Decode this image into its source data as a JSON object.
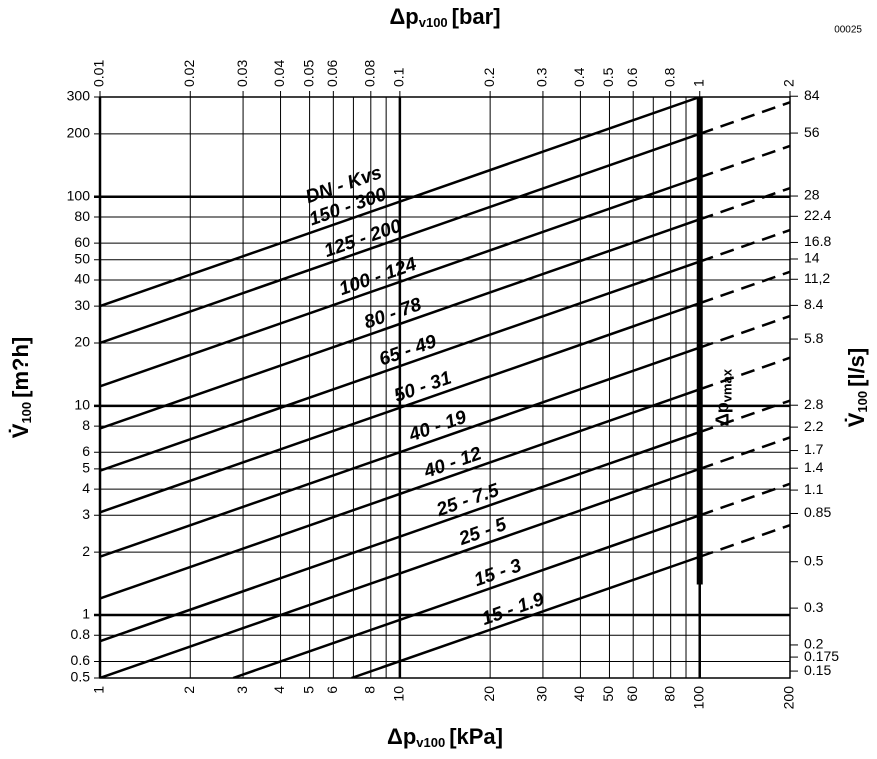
{
  "chart_data": {
    "type": "line",
    "code": "00025",
    "top_label": {
      "symbol": "Δp",
      "subscript": "v100",
      "unit": "[bar]"
    },
    "bottom_label": {
      "symbol": "Δp",
      "subscript": "v100",
      "unit": "[kPa]"
    },
    "left_label": {
      "symbol": "V̇",
      "subscript": "100",
      "unit": "[m?h]"
    },
    "right_label": {
      "symbol": "V̇",
      "subscript": "100",
      "unit": "[l/s]"
    },
    "legend_title": "DN - Kvs",
    "log_x": true,
    "log_y": true,
    "xlim": [
      1,
      200
    ],
    "xticks": [
      1,
      2,
      3,
      4,
      5,
      6,
      8,
      10,
      20,
      30,
      40,
      50,
      60,
      80,
      100,
      200
    ],
    "xminor": [
      7,
      9,
      70,
      90
    ],
    "x2lim": [
      0.01,
      2
    ],
    "x2ticks": [
      0.01,
      0.02,
      0.03,
      0.04,
      0.05,
      0.06,
      0.08,
      0.1,
      0.2,
      0.3,
      0.4,
      0.5,
      0.6,
      0.8,
      1,
      2
    ],
    "ylim": [
      0.5,
      300
    ],
    "yticks": [
      0.5,
      0.6,
      0.8,
      1,
      2,
      3,
      4,
      5,
      6,
      8,
      10,
      20,
      30,
      40,
      50,
      60,
      80,
      100,
      200,
      300
    ],
    "y2lim": [
      0.139,
      83.3
    ],
    "y2ticks": [
      0.15,
      0.175,
      0.2,
      0.3,
      0.5,
      0.85,
      1.1,
      1.4,
      1.7,
      2.2,
      2.8,
      5.8,
      8.4,
      {
        "value": 11.2,
        "label": "11,2"
      },
      14,
      16.8,
      22.4,
      28,
      56,
      84
    ],
    "vmax_line": {
      "label": "Δp",
      "subscript": "vmax",
      "x": 100,
      "ylim": [
        1.4,
        300
      ]
    },
    "color": "#000000",
    "series": [
      {
        "name": "150 - 300",
        "x": [
          1,
          100
        ],
        "values": [
          30,
          300
        ]
      },
      {
        "name": "125 - 200",
        "x": [
          1,
          100
        ],
        "values": [
          20,
          200
        ],
        "ext_x": [
          100,
          200
        ],
        "ext_values": [
          200,
          283
        ]
      },
      {
        "name": "100 - 124",
        "x": [
          1,
          100
        ],
        "values": [
          12.4,
          124
        ],
        "ext_x": [
          100,
          200
        ],
        "ext_values": [
          124,
          175
        ]
      },
      {
        "name": "80 - 78",
        "x": [
          1,
          100
        ],
        "values": [
          7.8,
          78
        ],
        "ext_x": [
          100,
          200
        ],
        "ext_values": [
          78,
          110
        ]
      },
      {
        "name": "65 - 49",
        "x": [
          1,
          100
        ],
        "values": [
          4.9,
          49
        ],
        "ext_x": [
          100,
          200
        ],
        "ext_values": [
          49,
          69.3
        ]
      },
      {
        "name": "50 - 31",
        "x": [
          1,
          100
        ],
        "values": [
          3.1,
          31
        ],
        "ext_x": [
          100,
          200
        ],
        "ext_values": [
          31,
          43.8
        ]
      },
      {
        "name": "40 - 19",
        "x": [
          1,
          100
        ],
        "values": [
          1.9,
          19
        ],
        "ext_x": [
          100,
          200
        ],
        "ext_values": [
          19,
          26.9
        ]
      },
      {
        "name": "40 - 12",
        "x": [
          1,
          100
        ],
        "values": [
          1.2,
          12
        ],
        "ext_x": [
          100,
          200
        ],
        "ext_values": [
          12,
          17
        ]
      },
      {
        "name": "25 - 7.5",
        "x": [
          1,
          100
        ],
        "values": [
          0.75,
          7.5
        ],
        "ext_x": [
          100,
          200
        ],
        "ext_values": [
          7.5,
          10.6
        ]
      },
      {
        "name": "25 - 5",
        "x": [
          1,
          100
        ],
        "values": [
          0.5,
          5
        ],
        "ext_x": [
          100,
          200
        ],
        "ext_values": [
          5,
          7.07
        ]
      },
      {
        "name": "15 - 3",
        "x": [
          2.78,
          100
        ],
        "values": [
          0.5,
          3
        ],
        "ext_x": [
          100,
          200
        ],
        "ext_values": [
          3,
          4.24
        ]
      },
      {
        "name": "15 - 1.9",
        "x": [
          6.9,
          100
        ],
        "values": [
          0.5,
          1.9
        ],
        "ext_x": [
          100,
          200
        ],
        "ext_values": [
          1.9,
          2.69
        ]
      }
    ]
  }
}
